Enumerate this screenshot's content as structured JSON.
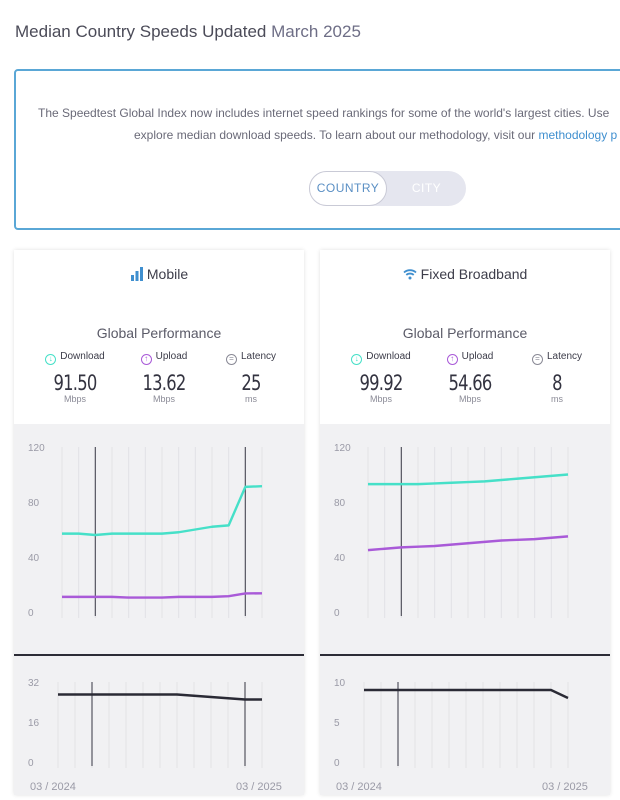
{
  "header": {
    "title": "Median Country Speeds Updated",
    "date": "March 2025"
  },
  "info": {
    "line1": "The Speedtest Global Index now includes internet speed rankings for some of the world's largest cities. Use",
    "line2_pre": "explore median download speeds. To learn about our methodology, visit our",
    "line2_link": "methodology p"
  },
  "toggle": {
    "country": "COUNTRY",
    "city": "CITY",
    "selected": "COUNTRY"
  },
  "colors": {
    "download": "#46e0c8",
    "upload": "#a95ad8",
    "latency": "#2a2a35",
    "frame": "#5aa7d6"
  },
  "mobile": {
    "title": "Mobile",
    "icon": "signal-bars-icon",
    "subtitle": "Global Performance",
    "download": {
      "label": "Download",
      "value": "91.50",
      "unit": "Mbps"
    },
    "upload": {
      "label": "Upload",
      "value": "13.62",
      "unit": "Mbps"
    },
    "latency": {
      "label": "Latency",
      "value": "25",
      "unit": "ms"
    }
  },
  "fixed": {
    "title": "Fixed Broadband",
    "icon": "wifi-icon",
    "subtitle": "Global Performance",
    "download": {
      "label": "Download",
      "value": "99.92",
      "unit": "Mbps"
    },
    "upload": {
      "label": "Upload",
      "value": "54.66",
      "unit": "Mbps"
    },
    "latency": {
      "label": "Latency",
      "value": "8",
      "unit": "ms"
    }
  },
  "chart_data": [
    {
      "type": "line",
      "panel": "mobile-speed",
      "ylim": [
        0,
        120
      ],
      "yticks": [
        "120",
        "80",
        "40",
        "0"
      ],
      "yticks_values": [
        120,
        80,
        40,
        0
      ],
      "x_count": 13,
      "series": [
        {
          "name": "Download",
          "color": "#46e0c8",
          "values": [
            57,
            57,
            56,
            57,
            57,
            57,
            57,
            58,
            60,
            62,
            63,
            91,
            91.5
          ]
        },
        {
          "name": "Upload",
          "color": "#a95ad8",
          "values": [
            11,
            11,
            11,
            11,
            10.5,
            10.5,
            10.5,
            11,
            11,
            11,
            11.5,
            13.5,
            13.6
          ]
        }
      ],
      "markers_index": [
        2,
        11
      ]
    },
    {
      "type": "line",
      "panel": "mobile-latency",
      "ylim": [
        0,
        32
      ],
      "yticks": [
        "32",
        "16",
        "0"
      ],
      "yticks_values": [
        32,
        16,
        0
      ],
      "xticks": [
        "03 / 2024",
        "03 / 2025"
      ],
      "x_count": 13,
      "series": [
        {
          "name": "Latency",
          "color": "#2a2a35",
          "values": [
            27,
            27,
            27,
            27,
            27,
            27,
            27,
            27,
            26.5,
            26,
            25.5,
            25,
            25
          ]
        }
      ],
      "markers_index": [
        2,
        11
      ]
    },
    {
      "type": "line",
      "panel": "fixed-speed",
      "ylim": [
        0,
        120
      ],
      "yticks": [
        "120",
        "80",
        "40",
        "0"
      ],
      "yticks_values": [
        120,
        80,
        40,
        0
      ],
      "x_count": 13,
      "series": [
        {
          "name": "Download",
          "color": "#46e0c8",
          "values": [
            93,
            93,
            93,
            93,
            93.5,
            94,
            94.5,
            95,
            96,
            97,
            98,
            99,
            100
          ]
        },
        {
          "name": "Upload",
          "color": "#a95ad8",
          "values": [
            45,
            46,
            47,
            47.5,
            48,
            49,
            50,
            51,
            52,
            52.5,
            53,
            54,
            55
          ]
        }
      ],
      "markers_index": [
        2
      ]
    },
    {
      "type": "line",
      "panel": "fixed-latency",
      "ylim": [
        0,
        10
      ],
      "yticks": [
        "10",
        "5",
        "0"
      ],
      "yticks_values": [
        10,
        5,
        0
      ],
      "xticks": [
        "03 / 2024",
        "03 / 2025"
      ],
      "x_count": 13,
      "series": [
        {
          "name": "Latency",
          "color": "#2a2a35",
          "values": [
            9,
            9,
            9,
            9,
            9,
            9,
            9,
            9,
            9,
            9,
            9,
            9,
            8
          ]
        }
      ],
      "markers_index": [
        2
      ]
    }
  ]
}
